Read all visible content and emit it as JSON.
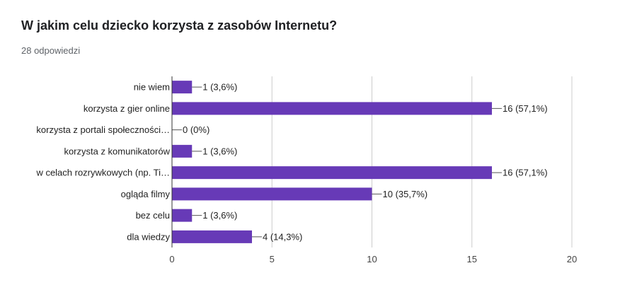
{
  "question": {
    "title": "W jakim celu dziecko korzysta z zasobów Internetu?",
    "responses": "28 odpowiedzi"
  },
  "colors": {
    "bar": "#673ab7",
    "axis": "#333333",
    "grid": "#cccccc"
  },
  "chart_data": {
    "type": "bar",
    "orientation": "horizontal",
    "title": "",
    "xlabel": "",
    "ylabel": "",
    "categories": [
      "nie wiem",
      "korzysta z gier online",
      "korzysta z portali społeczności…",
      "korzysta z komunikatorów",
      "w celach rozrywkowych (np. Ti…",
      "ogląda filmy",
      "bez celu",
      "dla wiedzy"
    ],
    "values": [
      1,
      16,
      0,
      1,
      16,
      10,
      1,
      4
    ],
    "data_labels": [
      "1 (3,6%)",
      "16 (57,1%)",
      "0 (0%)",
      "1 (3,6%)",
      "16 (57,1%)",
      "10 (35,7%)",
      "1 (3,6%)",
      "4 (14,3%)"
    ],
    "xlim": [
      0,
      20
    ],
    "xticks": [
      "0",
      "5",
      "10",
      "15",
      "20"
    ],
    "grid": true,
    "legend": "none"
  }
}
